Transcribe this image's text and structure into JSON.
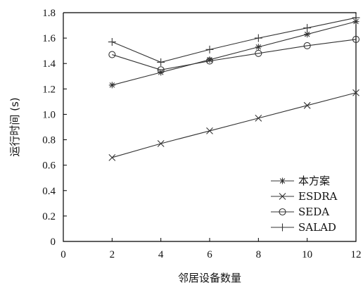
{
  "chart_data": {
    "type": "line",
    "xlabel": "邻居设备数量",
    "ylabel": "运行时间 (s)",
    "x": [
      2,
      4,
      6,
      8,
      10,
      12
    ],
    "xlim": [
      0,
      12
    ],
    "ylim": [
      0,
      1.8
    ],
    "x_ticks": [
      "0",
      "2",
      "4",
      "6",
      "8",
      "10",
      "12"
    ],
    "y_ticks": [
      "0",
      "0.2",
      "0.4",
      "0.6",
      "0.8",
      "1.0",
      "1.2",
      "1.4",
      "1.6",
      "1.8"
    ],
    "grid": false,
    "legend_position": "bottom-right",
    "series": [
      {
        "name": "本方案",
        "marker": "asterisk",
        "color": "#333333",
        "values": [
          1.23,
          1.33,
          1.43,
          1.53,
          1.63,
          1.73
        ]
      },
      {
        "name": "ESDRA",
        "marker": "x",
        "color": "#333333",
        "values": [
          0.66,
          0.77,
          0.87,
          0.97,
          1.07,
          1.17
        ]
      },
      {
        "name": "SEDA",
        "marker": "circle",
        "color": "#333333",
        "values": [
          1.47,
          1.35,
          1.42,
          1.48,
          1.54,
          1.59
        ]
      },
      {
        "name": "SALAD",
        "marker": "plus",
        "color": "#333333",
        "values": [
          1.57,
          1.41,
          1.51,
          1.6,
          1.68,
          1.76
        ]
      }
    ]
  }
}
